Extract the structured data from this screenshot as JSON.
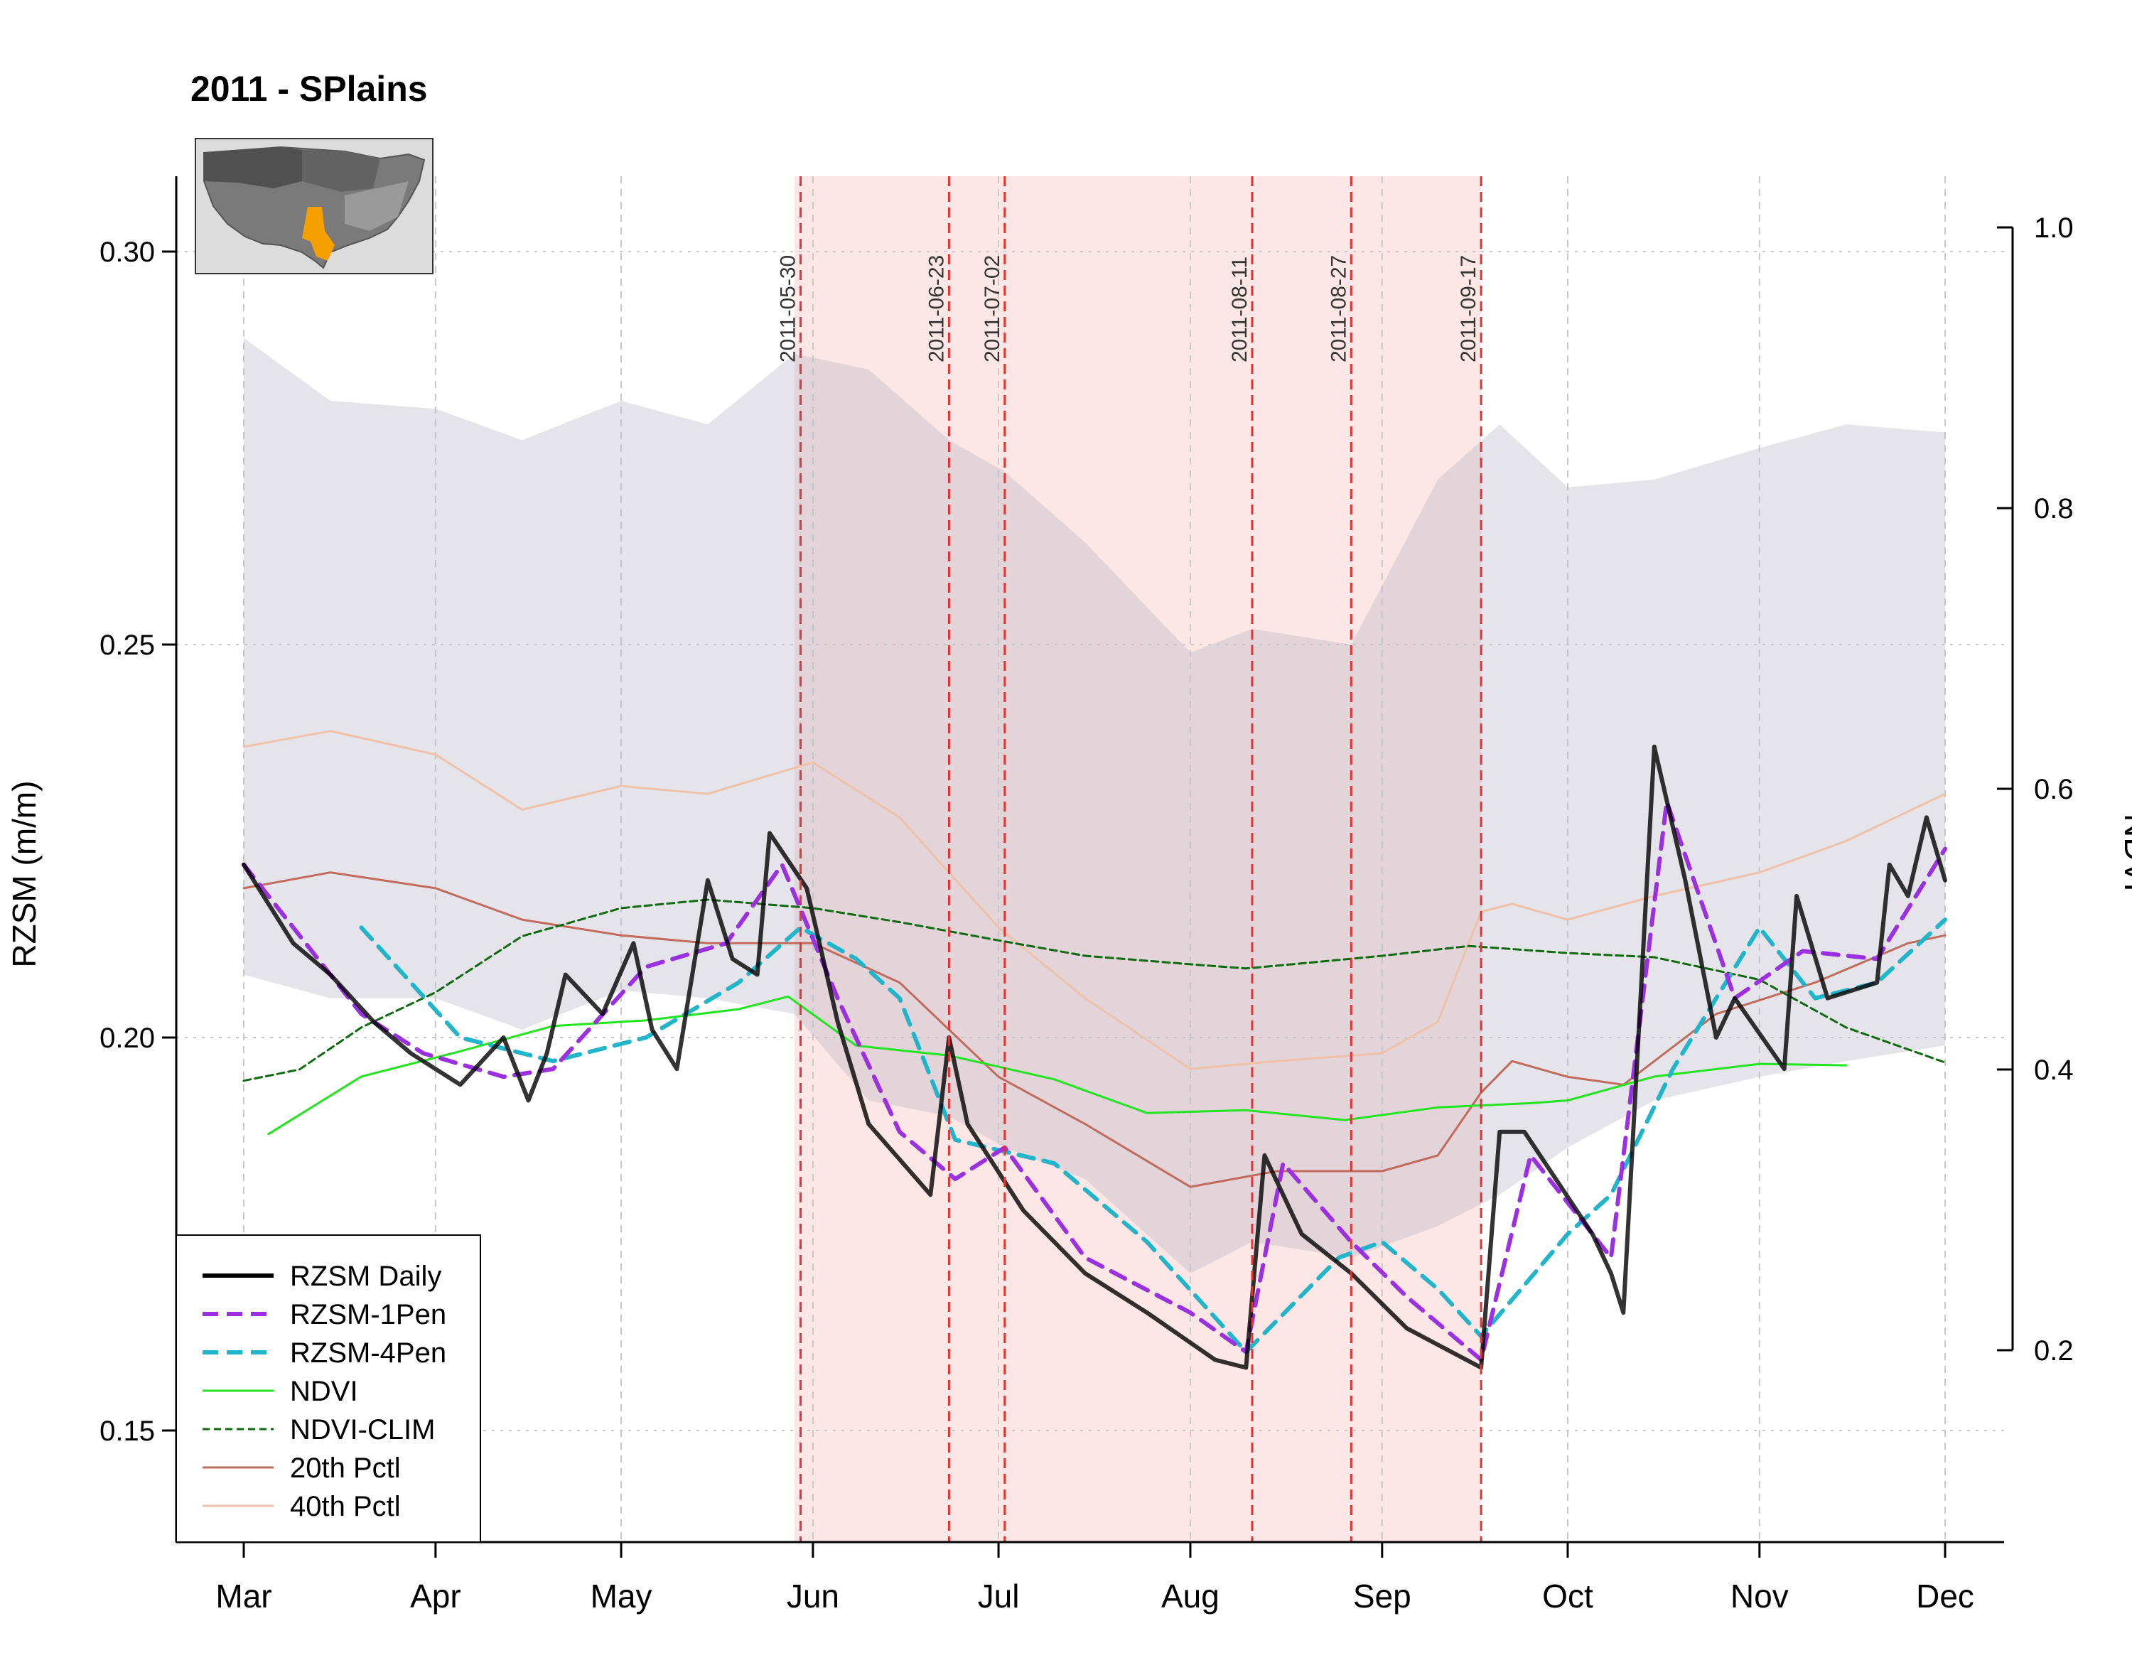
{
  "chart_data": {
    "type": "line",
    "title": "2011 - SPlains",
    "ylabel": "RZSM (m/m)",
    "y2label": "NDVI",
    "ylim": [
      0.135,
      0.31
    ],
    "y2lim": [
      0.2,
      1.0
    ],
    "xlim": [
      "2011-03-01",
      "2011-12-01"
    ],
    "x_ticks": [
      {
        "date": "2011-03-01",
        "label": "Mar"
      },
      {
        "date": "2011-04-01",
        "label": "Apr"
      },
      {
        "date": "2011-05-01",
        "label": "May"
      },
      {
        "date": "2011-06-01",
        "label": "Jun"
      },
      {
        "date": "2011-07-01",
        "label": "Jul"
      },
      {
        "date": "2011-08-01",
        "label": "Aug"
      },
      {
        "date": "2011-09-01",
        "label": "Sep"
      },
      {
        "date": "2011-10-01",
        "label": "Oct"
      },
      {
        "date": "2011-11-01",
        "label": "Nov"
      },
      {
        "date": "2011-12-01",
        "label": "Dec"
      }
    ],
    "y_ticks": [
      "0.15",
      "0.20",
      "0.25",
      "0.30"
    ],
    "y2_ticks": [
      "0.2",
      "0.4",
      "0.6",
      "0.8",
      "1.0"
    ],
    "grid": true,
    "legend_position": "bottom-left",
    "drought_period": [
      "2011-05-29",
      "2011-09-17"
    ],
    "event_dates": [
      "2011-05-30",
      "2011-06-23",
      "2011-07-02",
      "2011-08-11",
      "2011-08-27",
      "2011-09-17"
    ],
    "band": {
      "x": [
        "2011-03-01",
        "2011-03-15",
        "2011-04-01",
        "2011-04-15",
        "2011-05-01",
        "2011-05-15",
        "2011-05-29",
        "2011-06-10",
        "2011-06-23",
        "2011-07-02",
        "2011-07-15",
        "2011-08-01",
        "2011-08-11",
        "2011-08-27",
        "2011-09-10",
        "2011-09-20",
        "2011-10-01",
        "2011-10-15",
        "2011-11-01",
        "2011-11-15",
        "2011-12-01"
      ],
      "upper": [
        0.289,
        0.281,
        0.28,
        0.276,
        0.281,
        0.278,
        0.287,
        0.285,
        0.276,
        0.272,
        0.263,
        0.249,
        0.252,
        0.25,
        0.271,
        0.278,
        0.27,
        0.271,
        0.275,
        0.278,
        0.277
      ],
      "lower": [
        0.208,
        0.205,
        0.205,
        0.201,
        0.206,
        0.205,
        0.203,
        0.192,
        0.19,
        0.186,
        0.182,
        0.17,
        0.174,
        0.172,
        0.176,
        0.18,
        0.186,
        0.192,
        0.195,
        0.197,
        0.199
      ]
    },
    "series": [
      {
        "name": "RZSM Daily",
        "color": "#000000",
        "style": "solid",
        "width": 6,
        "x": [
          "2011-03-01",
          "2011-03-05",
          "2011-03-09",
          "2011-03-15",
          "2011-03-22",
          "2011-03-28",
          "2011-04-05",
          "2011-04-12",
          "2011-04-16",
          "2011-04-19",
          "2011-04-22",
          "2011-04-28",
          "2011-05-03",
          "2011-05-06",
          "2011-05-10",
          "2011-05-15",
          "2011-05-19",
          "2011-05-23",
          "2011-05-25",
          "2011-05-31",
          "2011-06-05",
          "2011-06-10",
          "2011-06-20",
          "2011-06-23",
          "2011-06-26",
          "2011-07-05",
          "2011-07-15",
          "2011-07-25",
          "2011-08-05",
          "2011-08-10",
          "2011-08-13",
          "2011-08-19",
          "2011-08-27",
          "2011-09-05",
          "2011-09-17",
          "2011-09-20",
          "2011-09-24",
          "2011-10-05",
          "2011-10-08",
          "2011-10-10",
          "2011-10-15",
          "2011-10-20",
          "2011-10-25",
          "2011-10-28",
          "2011-11-05",
          "2011-11-07",
          "2011-11-12",
          "2011-11-20",
          "2011-11-22",
          "2011-11-25",
          "2011-11-28",
          "2011-12-01"
        ],
        "y": [
          0.222,
          0.217,
          0.212,
          0.208,
          0.202,
          0.198,
          0.194,
          0.2,
          0.192,
          0.198,
          0.208,
          0.203,
          0.212,
          0.201,
          0.196,
          0.22,
          0.21,
          0.208,
          0.226,
          0.219,
          0.202,
          0.189,
          0.18,
          0.2,
          0.189,
          0.178,
          0.17,
          0.165,
          0.159,
          0.158,
          0.185,
          0.175,
          0.17,
          0.163,
          0.158,
          0.188,
          0.188,
          0.175,
          0.17,
          0.165,
          0.237,
          0.22,
          0.2,
          0.205,
          0.196,
          0.218,
          0.205,
          0.207,
          0.222,
          0.218,
          0.228,
          0.22
        ]
      },
      {
        "name": "RZSM-1Pen",
        "color": "#9b30e0",
        "style": "dashed",
        "width": 6,
        "x": [
          "2011-03-01",
          "2011-03-10",
          "2011-03-20",
          "2011-03-30",
          "2011-04-12",
          "2011-04-20",
          "2011-05-05",
          "2011-05-18",
          "2011-05-27",
          "2011-06-05",
          "2011-06-15",
          "2011-06-24",
          "2011-07-02",
          "2011-07-15",
          "2011-08-01",
          "2011-08-10",
          "2011-08-16",
          "2011-08-27",
          "2011-09-05",
          "2011-09-17",
          "2011-09-25",
          "2011-10-08",
          "2011-10-17",
          "2011-10-28",
          "2011-11-08",
          "2011-11-20",
          "2011-12-01"
        ],
        "y": [
          0.222,
          0.213,
          0.203,
          0.198,
          0.195,
          0.196,
          0.209,
          0.212,
          0.222,
          0.205,
          0.188,
          0.182,
          0.186,
          0.172,
          0.165,
          0.16,
          0.184,
          0.174,
          0.167,
          0.159,
          0.185,
          0.172,
          0.23,
          0.205,
          0.211,
          0.21,
          0.224
        ]
      },
      {
        "name": "RZSM-4Pen",
        "color": "#22b5c9",
        "style": "dashed",
        "width": 6,
        "x": [
          "2011-03-20",
          "2011-04-05",
          "2011-04-20",
          "2011-05-05",
          "2011-05-20",
          "2011-05-30",
          "2011-06-08",
          "2011-06-15",
          "2011-06-24",
          "2011-07-10",
          "2011-07-25",
          "2011-08-10",
          "2011-08-25",
          "2011-09-01",
          "2011-09-10",
          "2011-09-17",
          "2011-10-01",
          "2011-10-08",
          "2011-10-18",
          "2011-11-01",
          "2011-11-10",
          "2011-11-20",
          "2011-12-01"
        ],
        "y": [
          0.214,
          0.2,
          0.197,
          0.2,
          0.207,
          0.214,
          0.21,
          0.205,
          0.187,
          0.184,
          0.174,
          0.16,
          0.172,
          0.174,
          0.168,
          0.162,
          0.175,
          0.18,
          0.196,
          0.214,
          0.205,
          0.207,
          0.215
        ]
      },
      {
        "name": "NDVI",
        "color": "#22e51f",
        "style": "solid",
        "width": 3,
        "axis": "y2",
        "x": [
          "2011-03-05",
          "2011-03-20",
          "2011-04-05",
          "2011-04-20",
          "2011-05-05",
          "2011-05-20",
          "2011-05-28",
          "2011-06-08",
          "2011-06-23",
          "2011-07-10",
          "2011-07-25",
          "2011-08-10",
          "2011-08-26",
          "2011-09-10",
          "2011-09-25",
          "2011-10-01",
          "2011-10-15",
          "2011-11-01",
          "2011-11-15"
        ],
        "y": [
          0.354,
          0.395,
          0.413,
          0.431,
          0.435,
          0.443,
          0.452,
          0.417,
          0.41,
          0.393,
          0.369,
          0.371,
          0.364,
          0.373,
          0.376,
          0.378,
          0.395,
          0.404,
          0.403
        ]
      },
      {
        "name": "NDVI-CLIM",
        "color": "#0e6a0e",
        "style": "dashed",
        "width": 3,
        "axis": "y2",
        "x": [
          "2011-03-01",
          "2011-03-10",
          "2011-03-20",
          "2011-04-01",
          "2011-04-15",
          "2011-05-01",
          "2011-05-15",
          "2011-06-01",
          "2011-06-15",
          "2011-07-01",
          "2011-07-15",
          "2011-08-01",
          "2011-08-10",
          "2011-08-20",
          "2011-09-01",
          "2011-09-15",
          "2011-10-01",
          "2011-10-15",
          "2011-11-01",
          "2011-11-15",
          "2011-12-01"
        ],
        "y": [
          0.392,
          0.4,
          0.43,
          0.455,
          0.495,
          0.515,
          0.521,
          0.515,
          0.505,
          0.492,
          0.481,
          0.475,
          0.472,
          0.476,
          0.481,
          0.488,
          0.483,
          0.48,
          0.464,
          0.43,
          0.405
        ]
      },
      {
        "name": "20th Pctl",
        "color": "#c26a5c",
        "style": "solid",
        "width": 3,
        "x": [
          "2011-03-01",
          "2011-03-15",
          "2011-04-01",
          "2011-04-15",
          "2011-05-01",
          "2011-05-15",
          "2011-06-01",
          "2011-06-15",
          "2011-07-01",
          "2011-07-15",
          "2011-08-01",
          "2011-08-15",
          "2011-09-01",
          "2011-09-10",
          "2011-09-17",
          "2011-09-22",
          "2011-10-01",
          "2011-10-10",
          "2011-10-25",
          "2011-11-10",
          "2011-11-25",
          "2011-12-01"
        ],
        "y": [
          0.219,
          0.221,
          0.219,
          0.215,
          0.213,
          0.212,
          0.212,
          0.207,
          0.195,
          0.189,
          0.181,
          0.183,
          0.183,
          0.185,
          0.193,
          0.197,
          0.195,
          0.194,
          0.203,
          0.207,
          0.212,
          0.213
        ]
      },
      {
        "name": "40th Pctl",
        "color": "#efc1a8",
        "style": "solid",
        "width": 3,
        "x": [
          "2011-03-01",
          "2011-03-15",
          "2011-04-01",
          "2011-04-15",
          "2011-05-01",
          "2011-05-15",
          "2011-06-01",
          "2011-06-15",
          "2011-07-01",
          "2011-07-15",
          "2011-08-01",
          "2011-08-15",
          "2011-09-01",
          "2011-09-10",
          "2011-09-17",
          "2011-09-22",
          "2011-10-01",
          "2011-10-15",
          "2011-11-01",
          "2011-11-15",
          "2011-12-01"
        ],
        "y": [
          0.237,
          0.239,
          0.236,
          0.229,
          0.232,
          0.231,
          0.235,
          0.228,
          0.214,
          0.205,
          0.196,
          0.197,
          0.198,
          0.202,
          0.216,
          0.217,
          0.215,
          0.218,
          0.221,
          0.225,
          0.231
        ]
      }
    ]
  }
}
